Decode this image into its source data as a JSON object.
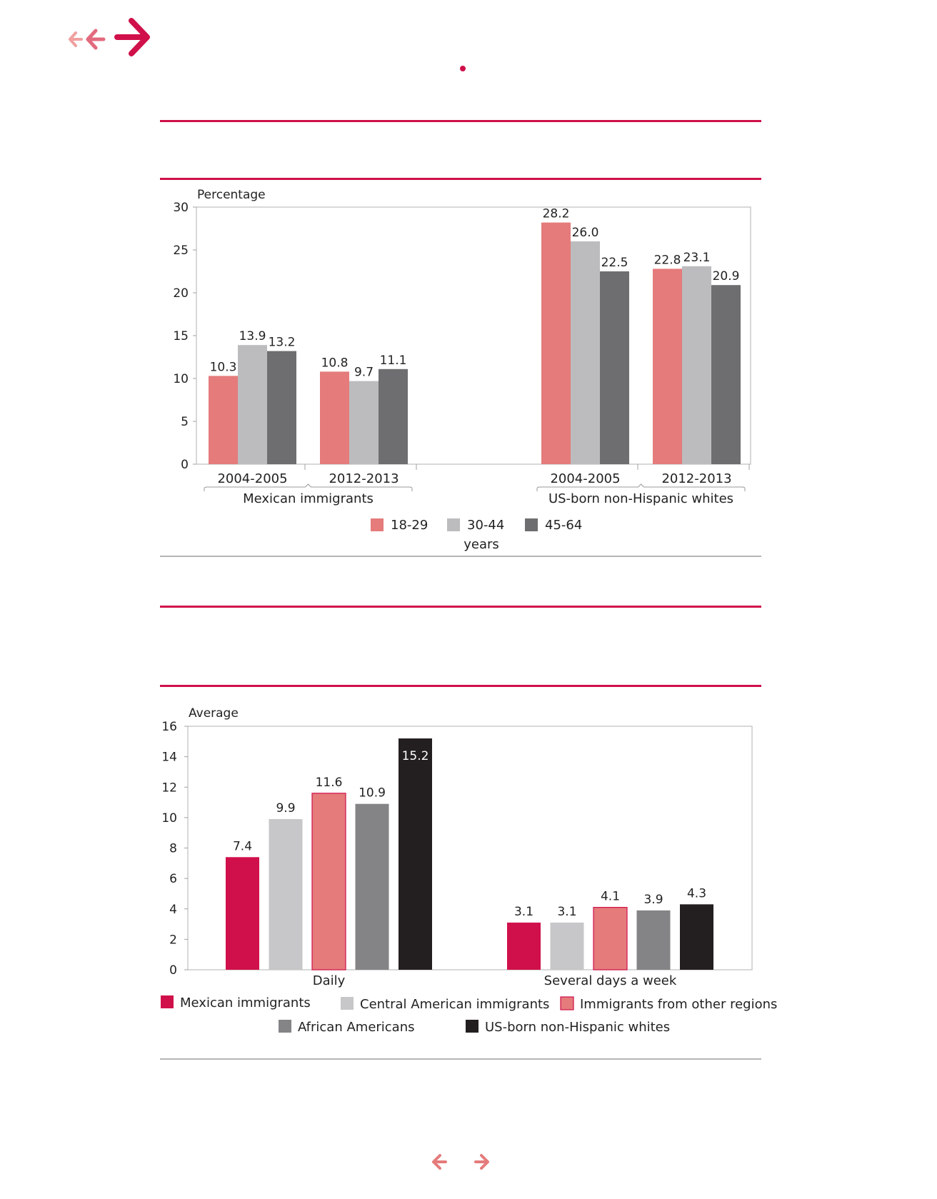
{
  "colors": {
    "accent": "#d0104a",
    "salmon": "#e57b7b",
    "light_grey": "#c7c7c9",
    "mid_grey": "#848487",
    "dark_grey": "#6e6e70",
    "black": "#231f20",
    "axis": "#a0a0a0"
  },
  "nav": {
    "top_icons": [
      "back-small-icon",
      "back-icon",
      "forward-icon"
    ],
    "bottom_icons": [
      "prev-page-icon",
      "next-page-icon"
    ]
  },
  "chart_data": [
    {
      "type": "bar",
      "ylabel": "Percentage",
      "ylim": [
        0,
        30
      ],
      "yticks": [
        0,
        5,
        10,
        15,
        20,
        25,
        30
      ],
      "grid": false,
      "groups": [
        {
          "label": "Mexican immigrants",
          "periods": [
            {
              "label": "2004-2005",
              "values": [
                10.3,
                13.9,
                13.2
              ],
              "value_labels": [
                "10.3",
                "13.9",
                "13.2"
              ]
            },
            {
              "label": "2012-2013",
              "values": [
                10.8,
                9.7,
                11.1
              ],
              "value_labels": [
                "10.8",
                "9.7",
                "11.1"
              ]
            }
          ]
        },
        {
          "label": "US-born non-Hispanic whites",
          "periods": [
            {
              "label": "2004-2005",
              "values": [
                28.2,
                26.0,
                22.5
              ],
              "value_labels": [
                "28.2",
                "26.0",
                "22.5"
              ]
            },
            {
              "label": "2012-2013",
              "values": [
                22.8,
                23.1,
                20.9
              ],
              "value_labels": [
                "22.8",
                "23.1",
                "20.9"
              ]
            }
          ]
        }
      ],
      "series": [
        {
          "name": "18-29",
          "color": "#e57b7b"
        },
        {
          "name": "30-44",
          "color": "#bcbcbf"
        },
        {
          "name": "45-64",
          "color": "#6e6e70"
        }
      ],
      "legend_title": "years",
      "legend_position": "bottom"
    },
    {
      "type": "bar",
      "ylabel": "Average",
      "ylim": [
        0,
        16
      ],
      "yticks": [
        0,
        2,
        4,
        6,
        8,
        10,
        12,
        14,
        16
      ],
      "grid": false,
      "categories": [
        "Daily",
        "Several days a week"
      ],
      "series": [
        {
          "name": "Mexican immigrants",
          "color": "#d0104a",
          "values": [
            7.4,
            3.1
          ],
          "value_labels": [
            "7.4",
            "3.1"
          ]
        },
        {
          "name": "Central American immigrants",
          "color": "#c7c7c9",
          "values": [
            9.9,
            3.1
          ],
          "value_labels": [
            "9.9",
            "3.1"
          ]
        },
        {
          "name": "Immigrants from other regions",
          "color": "#e57b7b",
          "values": [
            11.6,
            4.1
          ],
          "value_labels": [
            "11.6",
            "4.1"
          ]
        },
        {
          "name": "African Americans",
          "color": "#848487",
          "values": [
            10.9,
            3.9
          ],
          "value_labels": [
            "10.9",
            "3.9"
          ]
        },
        {
          "name": "US-born non-Hispanic whites",
          "color": "#231f20",
          "values": [
            15.2,
            4.3
          ],
          "value_labels": [
            "15.2",
            "4.3"
          ]
        }
      ],
      "legend_position": "bottom"
    }
  ]
}
